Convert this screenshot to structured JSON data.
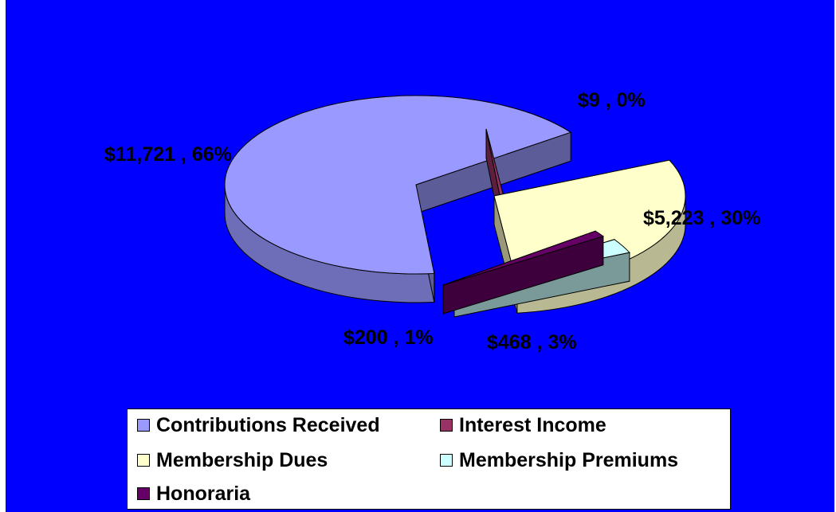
{
  "chart_data": {
    "type": "pie",
    "style": "3d-exploded",
    "background_color": "#0000ff",
    "slices": [
      {
        "name": "Contributions Received",
        "value": 11721,
        "percent": 66,
        "label": "$11,721 , 66%",
        "color": "#9999ff"
      },
      {
        "name": "Interest Income",
        "value": 9,
        "percent": 0,
        "label": "$9 , 0%",
        "color": "#993366"
      },
      {
        "name": "Membership Dues",
        "value": 5223,
        "percent": 30,
        "label": "$5,223 , 30%",
        "color": "#ffffcc"
      },
      {
        "name": "Membership Premiums",
        "value": 468,
        "percent": 3,
        "label": "$468 , 3%",
        "color": "#ccffff"
      },
      {
        "name": "Honoraria",
        "value": 200,
        "percent": 1,
        "label": "$200 , 1%",
        "color": "#660066"
      }
    ],
    "legend": {
      "placement": "bottom",
      "entries": [
        "Contributions Received",
        "Interest Income",
        "Membership Dues",
        "Membership Premiums",
        "Honoraria"
      ]
    }
  }
}
